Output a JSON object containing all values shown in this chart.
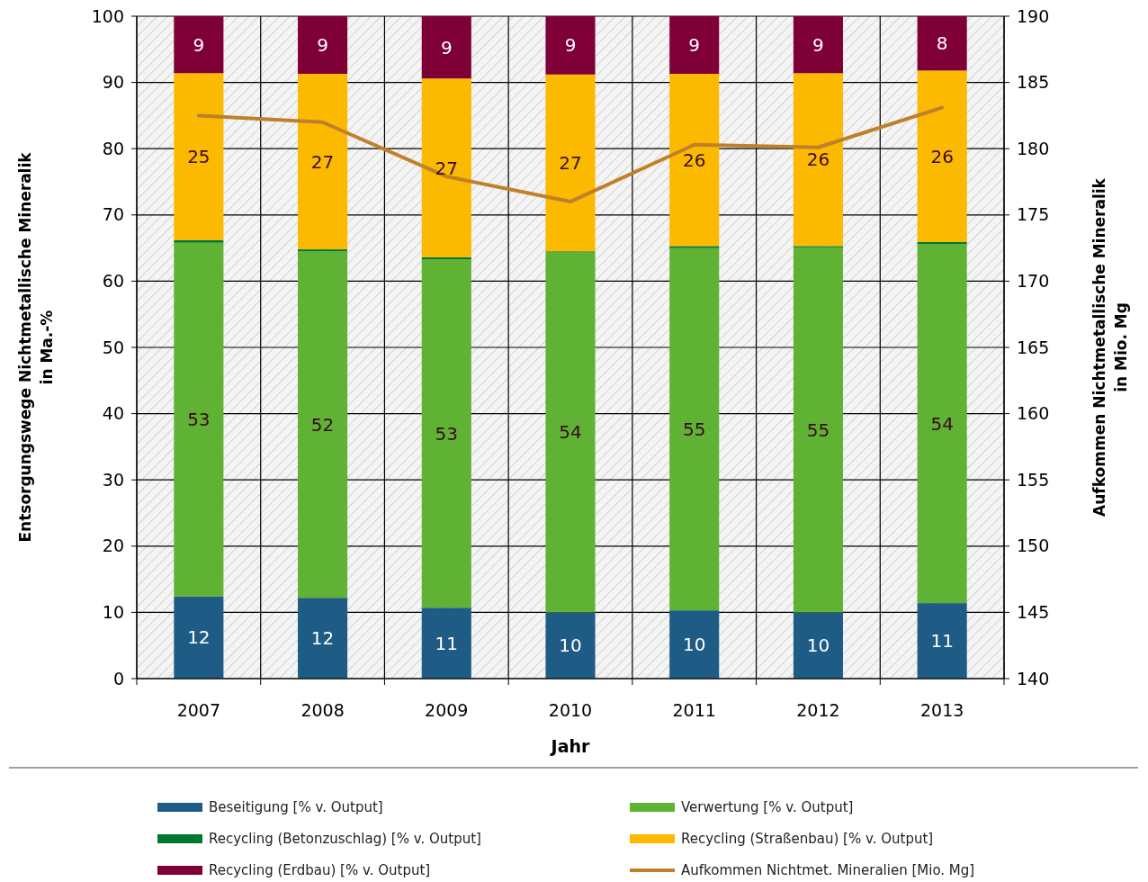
{
  "chart_data": {
    "type": "bar",
    "stacked": true,
    "xlabel": "Jahr",
    "ylabel": "Entsorgungswege Nichtmetallische Mineralik\nin Ma.-%",
    "y2label": "Aufkommen Nichtmetallische Mineralik\nin Mio. Mg",
    "categories": [
      "2007",
      "2008",
      "2009",
      "2010",
      "2011",
      "2012",
      "2013"
    ],
    "ylim": [
      0,
      100
    ],
    "yticks": [
      0,
      10,
      20,
      30,
      40,
      50,
      60,
      70,
      80,
      90,
      100
    ],
    "y2lim": [
      140,
      190
    ],
    "y2ticks": [
      140,
      145,
      150,
      155,
      160,
      165,
      170,
      175,
      180,
      185,
      190
    ],
    "grid": true,
    "legend": "bottom",
    "series": [
      {
        "name": "Beseitigung [% v. Output]",
        "color": "#1f5c85",
        "values": [
          12.4,
          12.2,
          10.7,
          10.0,
          10.3,
          10.0,
          11.4
        ],
        "value_labels": [
          "12",
          "12",
          "11",
          "10",
          "10",
          "10",
          "11"
        ]
      },
      {
        "name": "Verwertung [% v. Output]",
        "color": "#5fb233",
        "values": [
          53.4,
          52.3,
          52.6,
          54.4,
          54.7,
          55.1,
          54.2
        ],
        "value_labels": [
          "53",
          "52",
          "53",
          "54",
          "55",
          "55",
          "54"
        ]
      },
      {
        "name": "Recycling (Betonzuschlag) [% v. Output]",
        "color": "#00782d",
        "values": [
          0.4,
          0.3,
          0.3,
          0.1,
          0.3,
          0.2,
          0.3
        ]
      },
      {
        "name": "Recycling (Straßenbau) [% v. Output]",
        "color": "#fbb900",
        "values": [
          25.2,
          26.5,
          27.0,
          26.7,
          26.0,
          26.1,
          25.9
        ],
        "value_labels": [
          "25",
          "27",
          "27",
          "27",
          "26",
          "26",
          "26"
        ]
      },
      {
        "name": "Recycling (Erdbau) [% v. Output]",
        "color": "#7f0037",
        "values": [
          8.6,
          8.7,
          9.4,
          8.8,
          8.7,
          8.6,
          8.2
        ],
        "value_labels": [
          "9",
          "9",
          "9",
          "9",
          "9",
          "9",
          "8"
        ]
      },
      {
        "name": "Aufkommen Nichtmet. Mineralien [Mio. Mg]",
        "type": "line",
        "axis": "y2",
        "color": "#c0802a",
        "values": [
          182.5,
          182.0,
          177.9,
          176.0,
          180.3,
          180.1,
          183.1
        ]
      }
    ]
  }
}
